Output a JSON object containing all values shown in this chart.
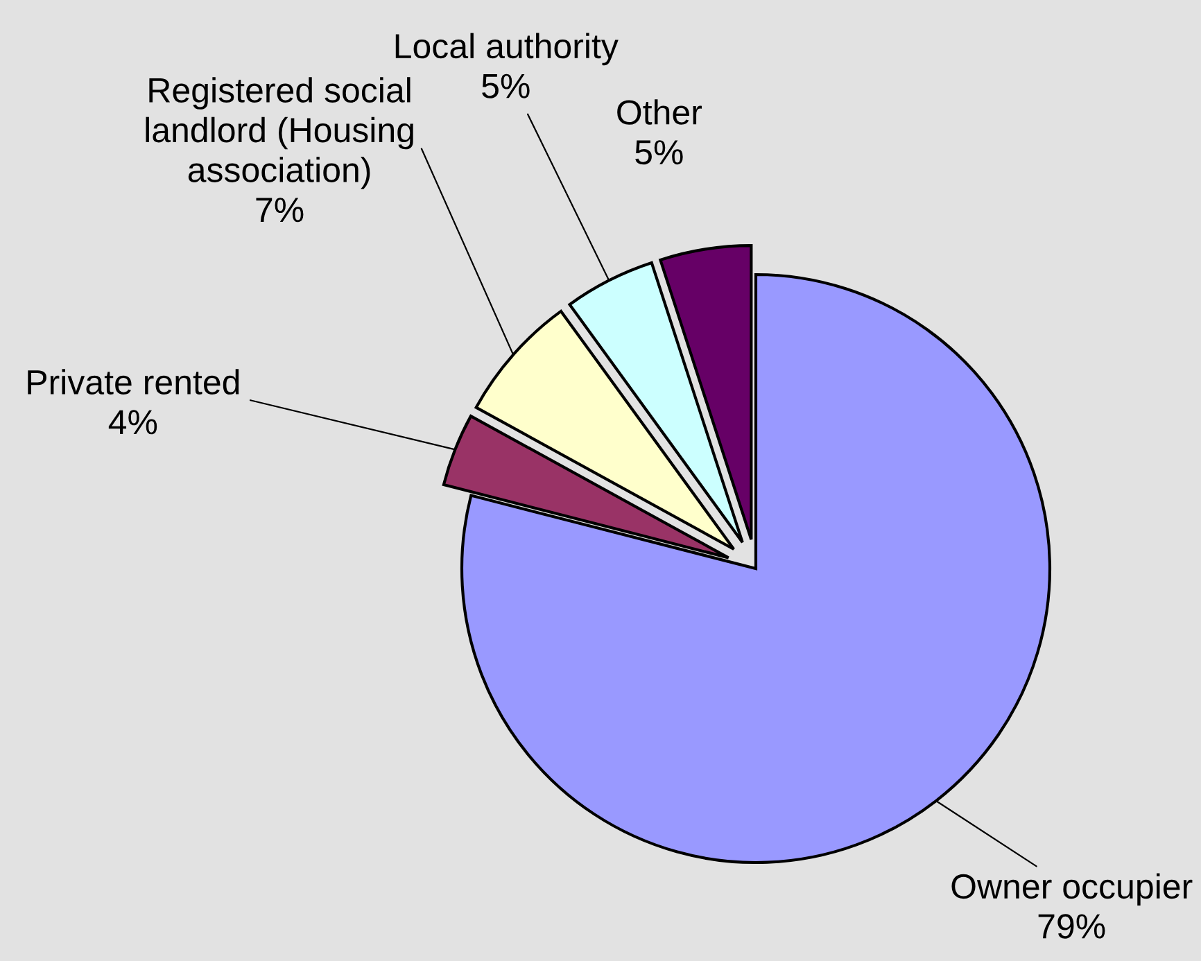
{
  "chart_data": {
    "type": "pie",
    "categories": [
      "Owner occupier",
      "Private rented",
      "Registered social landlord (Housing association)",
      "Local authority",
      "Other"
    ],
    "values": [
      79,
      4,
      7,
      5,
      5
    ],
    "colors": [
      "#9999ff",
      "#993366",
      "#ffffcc",
      "#ccffff",
      "#660066"
    ],
    "value_labels": [
      "79%",
      "4%",
      "7%",
      "5%",
      "5%"
    ]
  }
}
